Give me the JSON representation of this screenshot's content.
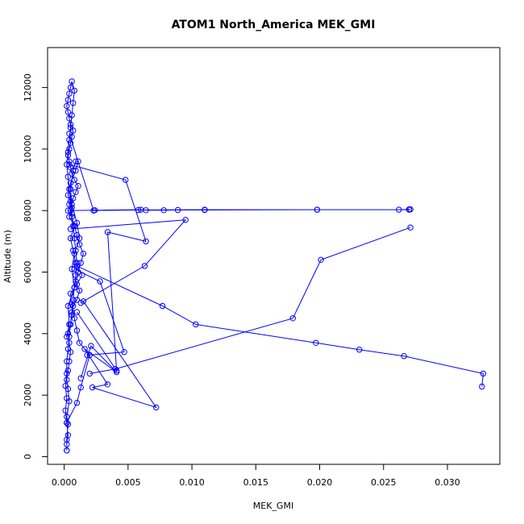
{
  "chart_data": {
    "type": "line",
    "title": "ATOM1 North_America MEK_GMI",
    "xlabel": "MEK_GMI",
    "ylabel": "Altitude (m)",
    "xlim": [
      -0.0013,
      0.0341
    ],
    "ylim": [
      -250,
      13300
    ],
    "x_ticks": [
      {
        "value": 0.0,
        "label": "0.000"
      },
      {
        "value": 0.005,
        "label": "0.005"
      },
      {
        "value": 0.01,
        "label": "0.010"
      },
      {
        "value": 0.015,
        "label": "0.015"
      },
      {
        "value": 0.02,
        "label": "0.020"
      },
      {
        "value": 0.025,
        "label": "0.025"
      },
      {
        "value": 0.03,
        "label": "0.030"
      }
    ],
    "y_ticks": [
      {
        "value": 0,
        "label": "0"
      },
      {
        "value": 2000,
        "label": "2000"
      },
      {
        "value": 4000,
        "label": "4000"
      },
      {
        "value": 6000,
        "label": "6000"
      },
      {
        "value": 8000,
        "label": "8000"
      },
      {
        "value": 10000,
        "label": "10000"
      },
      {
        "value": 12000,
        "label": "12000"
      }
    ],
    "grid": false,
    "series_color": "#0000ff",
    "marker": "open-circle",
    "series": [
      {
        "x": [
          0.0002,
          0.0002,
          0.0003,
          0.0002,
          0.0004,
          0.0003,
          0.0002,
          0.0003,
          0.0004,
          0.0005,
          0.0004,
          0.0003,
          0.0005,
          0.0006,
          0.0007,
          0.001,
          0.0012,
          0.0009,
          0.0011,
          0.0013,
          0.0015,
          0.0012,
          0.001,
          0.0008,
          0.0006,
          0.0005,
          0.0004,
          0.0007,
          0.0009,
          0.0011,
          0.0008,
          0.0006,
          0.0005,
          0.0004,
          0.0003,
          0.0004,
          0.0005,
          0.0006,
          0.0007,
          0.0005,
          0.0004,
          0.0003,
          0.0002,
          0.0003,
          0.0004,
          0.0005,
          0.0006,
          0.0008,
          0.0007,
          0.0006,
          0.0005,
          0.0004,
          0.0003,
          0.0002,
          0.0003,
          0.0004,
          0.0005,
          0.0006,
          0.0007,
          0.0008,
          0.0009,
          0.001,
          0.0009,
          0.0008,
          0.0007,
          0.0006,
          0.0005,
          0.0004,
          0.0003,
          0.0002,
          0.0002,
          0.0001,
          0.0002,
          0.0001,
          0.0002,
          0.0003,
          0.0002,
          0.0002
        ],
        "y": [
          200,
          550,
          1050,
          1300,
          1800,
          2200,
          2500,
          2800,
          3100,
          3400,
          3700,
          4000,
          4300,
          4600,
          4900,
          5100,
          5400,
          5700,
          6000,
          6300,
          6600,
          6900,
          7200,
          7500,
          7800,
          8000,
          8200,
          8400,
          8600,
          8800,
          9000,
          9200,
          9400,
          9600,
          9800,
          10000,
          10200,
          10400,
          10600,
          10800,
          11000,
          11200,
          11400,
          11600,
          11800,
          12000,
          12200,
          11900,
          11500,
          11100,
          10700,
          10300,
          9900,
          9500,
          9100,
          8700,
          8300,
          7900,
          7500,
          7100,
          6700,
          6300,
          5900,
          5500,
          5100,
          4700,
          4300,
          3900,
          3500,
          3100,
          2700,
          2300,
          1900,
          1500,
          1100,
          700,
          400,
          200
        ]
      },
      {
        "x": [
          0.0002,
          0.001,
          0.0013,
          0.002,
          0.0012,
          0.001,
          0.0008,
          0.0006,
          0.0005,
          0.001,
          0.0014,
          0.0009,
          0.0007,
          0.0005,
          0.0008,
          0.0004,
          0.0006,
          0.0003,
          0.0005,
          0.0009,
          0.0011,
          0.0009,
          0.0007,
          0.0005,
          0.0006,
          0.001,
          0.0012,
          0.0008,
          0.0006,
          0.0008,
          0.0003,
          0.0004,
          0.0002
        ],
        "y": [
          1100,
          1750,
          2250,
          3300,
          3700,
          4100,
          4500,
          4950,
          5300,
          5600,
          5900,
          6300,
          6700,
          7100,
          7500,
          7800,
          8100,
          8500,
          8900,
          9300,
          9600,
          9600,
          9300,
          8700,
          8200,
          7600,
          7100,
          6600,
          6100,
          5500,
          4900,
          4300,
          3900
        ]
      },
      {
        "x": [
          0.0004,
          0.0023,
          0.0058,
          0.011,
          0.0198,
          0.0262,
          0.027,
          0.0271,
          0.027,
          0.0198,
          0.011,
          0.0089,
          0.0078,
          0.0064,
          0.006,
          0.0024,
          0.0003
        ],
        "y": [
          10500,
          8000,
          8020,
          8030,
          8030,
          8030,
          8040,
          8040,
          8030,
          8030,
          8020,
          8020,
          8010,
          8010,
          8030,
          8010,
          8000
        ]
      },
      {
        "x": [
          0.0004,
          0.0048,
          0.0064,
          0.0034,
          0.0041,
          0.001
        ],
        "y": [
          9500,
          9000,
          7000,
          7300,
          2800,
          4700
        ]
      },
      {
        "x": [
          0.0005,
          0.0095,
          0.0063,
          0.0013
        ],
        "y": [
          7400,
          7700,
          6200,
          5000
        ]
      },
      {
        "x": [
          0.0008,
          0.0028,
          0.0047,
          0.0018
        ],
        "y": [
          6100,
          5700,
          3400,
          3300
        ]
      },
      {
        "x": [
          0.001,
          0.0077,
          0.0103,
          0.0197,
          0.0231,
          0.0266,
          0.0328,
          0.0327
        ],
        "y": [
          6200,
          4900,
          4300,
          3700,
          3480,
          3270,
          2700,
          2280
        ]
      },
      {
        "x": [
          0.002,
          0.004,
          0.0179,
          0.0201,
          0.0271
        ],
        "y": [
          2700,
          2850,
          4500,
          6400,
          7450
        ]
      },
      {
        "x": [
          0.0013,
          0.0021,
          0.0041,
          0.0016,
          0.0034,
          0.0022,
          0.0072,
          0.0015
        ],
        "y": [
          2550,
          3600,
          2750,
          3500,
          2350,
          2250,
          1600,
          5050
        ]
      }
    ]
  }
}
